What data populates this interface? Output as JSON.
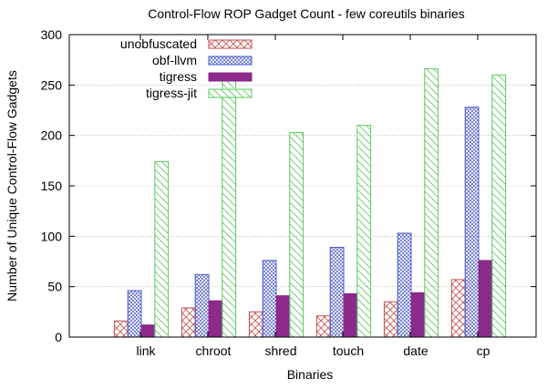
{
  "chart_data": {
    "type": "bar",
    "title": "Control-Flow ROP Gadget Count - few coreutils binaries",
    "xlabel": "Binaries",
    "ylabel": "Number of Unique Control-Flow Gadgets",
    "ylim": [
      0,
      300
    ],
    "yticks": [
      0,
      50,
      100,
      150,
      200,
      250,
      300
    ],
    "grid": true,
    "legend_position": "top-left",
    "categories": [
      "link",
      "chroot",
      "shred",
      "touch",
      "date",
      "cp"
    ],
    "series": [
      {
        "name": "unobfuscated",
        "color": "#c0504d",
        "values": [
          16,
          29,
          25,
          21,
          35,
          57
        ]
      },
      {
        "name": "obf-llvm",
        "color": "#4a5bc4",
        "values": [
          46,
          62,
          76,
          89,
          103,
          228
        ]
      },
      {
        "name": "tigress",
        "color": "#8b2a8b",
        "values": [
          12,
          36,
          41,
          43,
          44,
          76
        ]
      },
      {
        "name": "tigress-jit",
        "color": "#5bc85b",
        "values": [
          174,
          259,
          203,
          210,
          266,
          260
        ]
      }
    ]
  }
}
